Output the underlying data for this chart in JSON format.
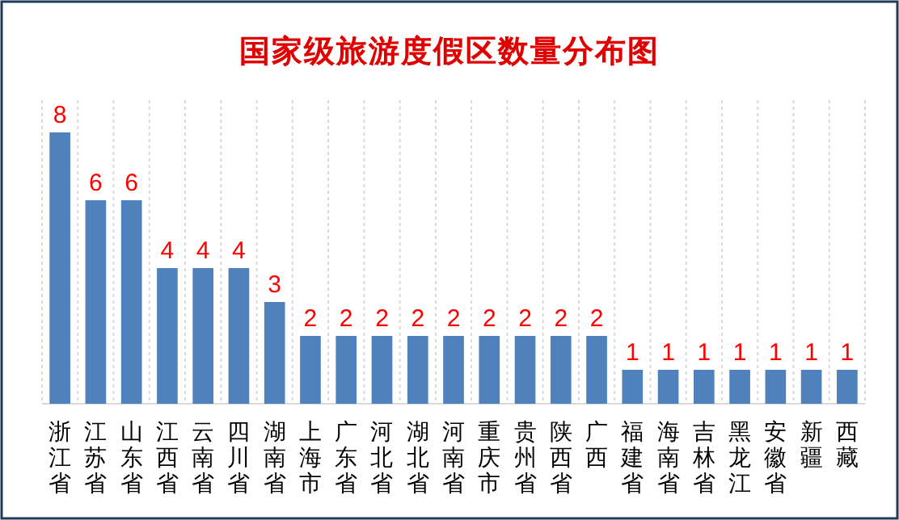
{
  "chart_data": {
    "type": "bar",
    "title": "国家级旅游度假区数量分布图",
    "categories": [
      "浙江省",
      "江苏省",
      "山东省",
      "江西省",
      "云南省",
      "四川省",
      "湖南省",
      "上海市",
      "广东省",
      "河北省",
      "湖北省",
      "河南省",
      "重庆市",
      "贵州省",
      "陕西省",
      "广西",
      "福建省",
      "海南省",
      "吉林省",
      "黑龙江",
      "安徽省",
      "新疆",
      "西藏"
    ],
    "values": [
      8,
      6,
      6,
      4,
      4,
      4,
      3,
      2,
      2,
      2,
      2,
      2,
      2,
      2,
      2,
      2,
      1,
      1,
      1,
      1,
      1,
      1,
      1
    ],
    "color": "#4f81bd",
    "data_labels": true,
    "grid": "x"
  }
}
